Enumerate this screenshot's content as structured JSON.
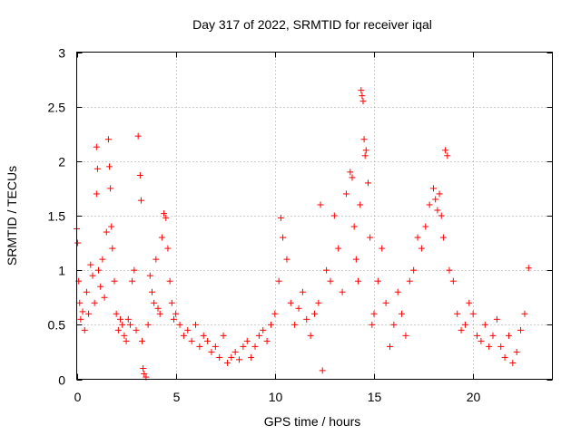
{
  "chart_data": {
    "type": "scatter",
    "title": "Day 317 of 2022, SRMTID for receiver iqal",
    "xlabel": "GPS time / hours",
    "ylabel": "SRMTID / TECUs",
    "xlim": [
      0,
      24
    ],
    "ylim": [
      0,
      3
    ],
    "xticks": [
      0,
      5,
      10,
      15,
      20
    ],
    "xtick_labels": [
      "0",
      "5",
      "10",
      "15",
      "20"
    ],
    "yticks": [
      0,
      0.5,
      1,
      1.5,
      2,
      2.5,
      3
    ],
    "ytick_labels": [
      "0",
      "0.5",
      "1",
      "1.5",
      "2",
      "2.5",
      "3"
    ],
    "grid": true,
    "marker": "+",
    "color": "#ff0000",
    "series": [
      {
        "name": "SRMTID",
        "x": [
          0.0,
          0.05,
          0.1,
          0.15,
          0.2,
          0.3,
          0.4,
          0.5,
          0.6,
          0.7,
          0.8,
          0.9,
          1.0,
          1.0,
          1.05,
          1.1,
          1.2,
          1.3,
          1.4,
          1.5,
          1.6,
          1.65,
          1.7,
          1.75,
          1.8,
          1.9,
          2.0,
          2.1,
          2.2,
          2.3,
          2.4,
          2.5,
          2.6,
          2.7,
          2.8,
          2.9,
          3.0,
          3.1,
          3.2,
          3.25,
          3.3,
          3.35,
          3.4,
          3.5,
          3.6,
          3.7,
          3.8,
          3.9,
          4.0,
          4.1,
          4.2,
          4.3,
          4.4,
          4.5,
          4.6,
          4.7,
          4.8,
          4.9,
          5.0,
          5.2,
          5.4,
          5.6,
          5.8,
          6.0,
          6.2,
          6.4,
          6.6,
          6.8,
          7.0,
          7.2,
          7.4,
          7.6,
          7.8,
          8.0,
          8.2,
          8.4,
          8.6,
          8.8,
          9.0,
          9.2,
          9.4,
          9.6,
          9.8,
          10.0,
          10.2,
          10.3,
          10.4,
          10.6,
          10.8,
          11.0,
          11.2,
          11.4,
          11.6,
          11.8,
          12.0,
          12.2,
          12.3,
          12.4,
          12.6,
          12.8,
          13.0,
          13.2,
          13.4,
          13.6,
          13.8,
          13.9,
          14.0,
          14.1,
          14.2,
          14.3,
          14.35,
          14.4,
          14.45,
          14.5,
          14.55,
          14.6,
          14.7,
          14.8,
          14.9,
          15.0,
          15.2,
          15.4,
          15.6,
          15.8,
          16.0,
          16.2,
          16.4,
          16.6,
          16.8,
          17.0,
          17.2,
          17.4,
          17.6,
          17.8,
          18.0,
          18.1,
          18.2,
          18.3,
          18.4,
          18.5,
          18.6,
          18.7,
          18.8,
          19.0,
          19.2,
          19.4,
          19.6,
          19.8,
          20.0,
          20.2,
          20.4,
          20.6,
          20.8,
          21.0,
          21.2,
          21.4,
          21.6,
          21.8,
          22.0,
          22.2,
          22.4,
          22.6,
          22.8
        ],
        "y": [
          1.38,
          1.25,
          0.9,
          0.7,
          0.55,
          0.62,
          0.45,
          0.8,
          0.6,
          1.05,
          0.95,
          0.7,
          2.13,
          1.7,
          1.93,
          1.0,
          0.85,
          1.1,
          0.75,
          1.35,
          2.2,
          1.95,
          1.75,
          1.4,
          1.2,
          0.9,
          0.6,
          0.45,
          0.55,
          0.5,
          0.4,
          0.35,
          0.55,
          0.5,
          0.9,
          1.0,
          0.45,
          2.23,
          1.87,
          1.64,
          0.35,
          0.1,
          0.05,
          0.02,
          0.5,
          0.95,
          0.8,
          0.7,
          1.1,
          0.65,
          0.6,
          1.3,
          1.52,
          1.48,
          1.2,
          0.9,
          0.7,
          0.55,
          0.6,
          0.5,
          0.4,
          0.45,
          0.35,
          0.5,
          0.3,
          0.4,
          0.35,
          0.25,
          0.3,
          0.2,
          0.4,
          0.15,
          0.2,
          0.25,
          0.18,
          0.3,
          0.35,
          0.2,
          0.3,
          0.4,
          0.45,
          0.35,
          0.5,
          0.6,
          0.9,
          1.48,
          1.3,
          1.1,
          0.7,
          0.5,
          0.65,
          0.8,
          0.55,
          0.4,
          0.6,
          0.7,
          1.6,
          0.08,
          1.0,
          0.9,
          1.5,
          1.2,
          0.8,
          1.7,
          1.9,
          1.85,
          1.4,
          1.1,
          0.9,
          1.6,
          2.65,
          2.6,
          2.55,
          2.2,
          2.05,
          2.1,
          1.8,
          1.3,
          0.5,
          0.6,
          0.9,
          1.2,
          0.7,
          0.3,
          0.5,
          0.8,
          0.6,
          0.4,
          0.9,
          1.0,
          1.3,
          1.2,
          1.4,
          1.6,
          1.75,
          1.65,
          1.55,
          1.7,
          1.5,
          1.3,
          2.1,
          2.05,
          1.0,
          0.9,
          0.6,
          0.45,
          0.5,
          0.7,
          0.6,
          0.4,
          0.35,
          0.5,
          0.3,
          0.4,
          0.55,
          0.3,
          0.2,
          0.4,
          0.15,
          0.25,
          0.45,
          0.6,
          1.02
        ]
      }
    ]
  }
}
